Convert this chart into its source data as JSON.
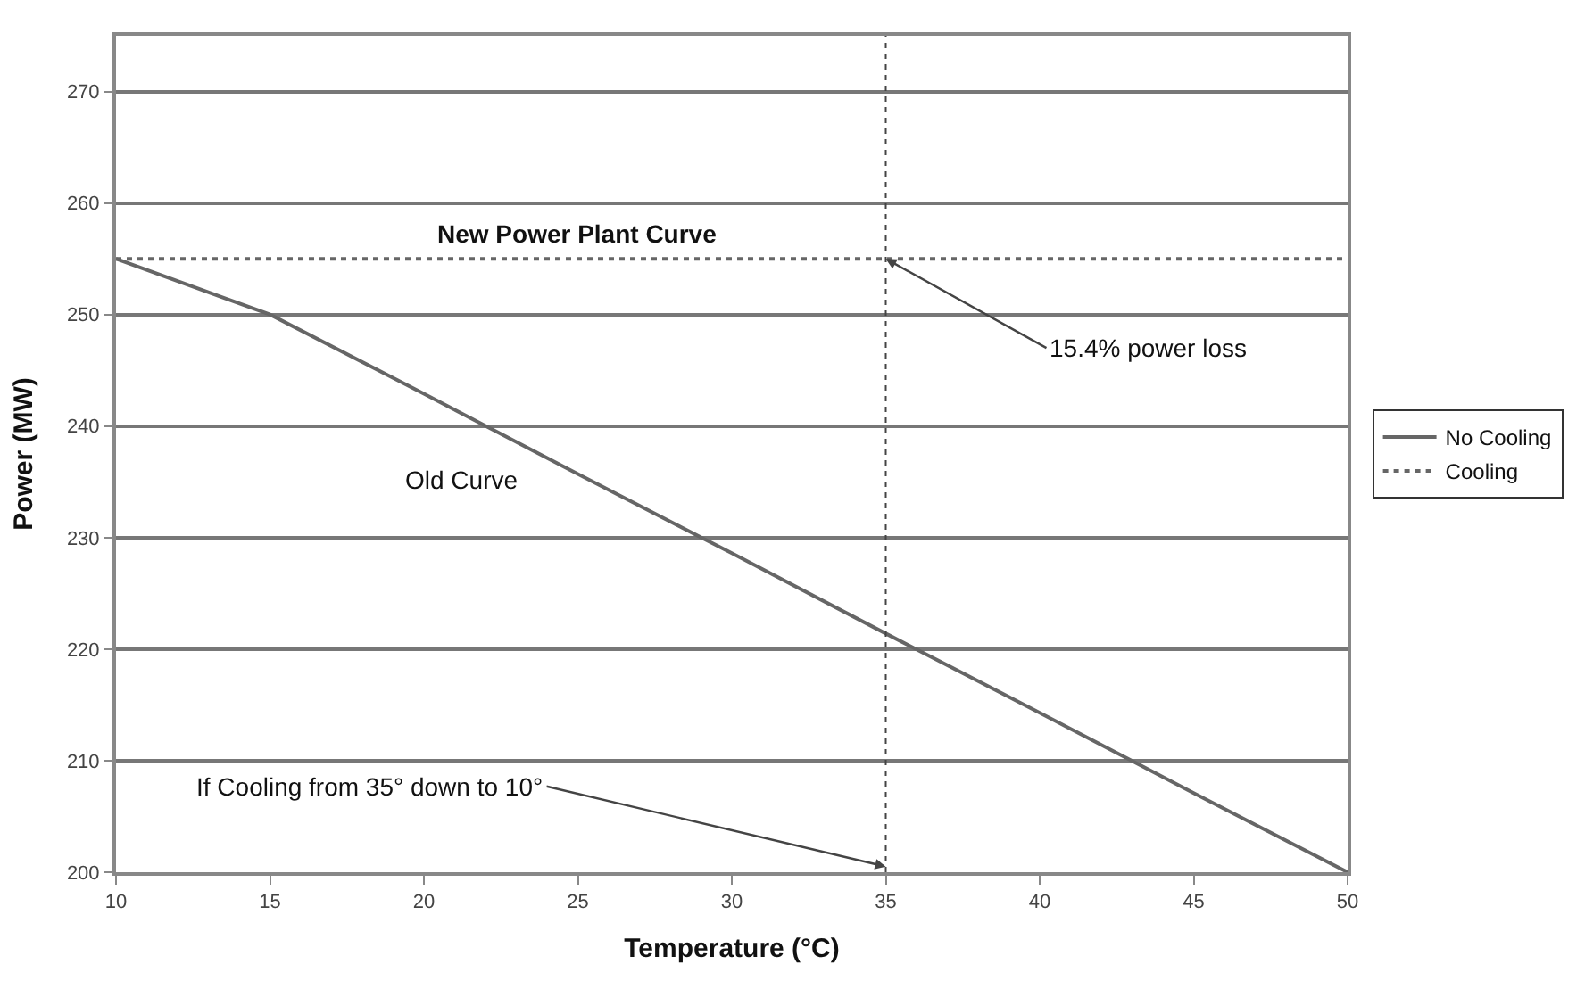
{
  "chart_data": {
    "type": "line",
    "xlabel": "Temperature (°C)",
    "ylabel": "Power (MW)",
    "x": [
      10,
      15,
      20,
      25,
      30,
      35,
      40,
      45,
      50
    ],
    "series": [
      {
        "name": "No Cooling",
        "color": "#666666",
        "line_style": "solid",
        "values": [
          255,
          250,
          242.9,
          235.7,
          228.6,
          221.4,
          214.3,
          207.1,
          200
        ]
      },
      {
        "name": "Cooling",
        "color": "#666666",
        "line_style": "dotted",
        "values": [
          255,
          255,
          255,
          255,
          255,
          255,
          255,
          255,
          255
        ]
      }
    ],
    "xlim": [
      10,
      50
    ],
    "xticks": [
      10,
      15,
      20,
      25,
      30,
      35,
      40,
      45,
      50
    ],
    "ylim": [
      200,
      275
    ],
    "yticks": [
      200,
      210,
      220,
      230,
      240,
      250,
      260,
      270
    ],
    "grid": "y",
    "legend": "right",
    "marker": "none",
    "ref_lines": [
      {
        "axis": "x",
        "value": 35,
        "line_style": "dotted",
        "color": "#444444"
      }
    ],
    "annotations": [
      {
        "text": "New Power Plant Curve",
        "x": 25,
        "y": 255
      },
      {
        "text": "Old Curve",
        "x": 21.5,
        "y": 240
      },
      {
        "text": "15.4% power loss",
        "x": 35,
        "y": 255
      },
      {
        "text": "If Cooling from 35° down to 10°",
        "x": 35,
        "y": 200.5
      }
    ]
  }
}
